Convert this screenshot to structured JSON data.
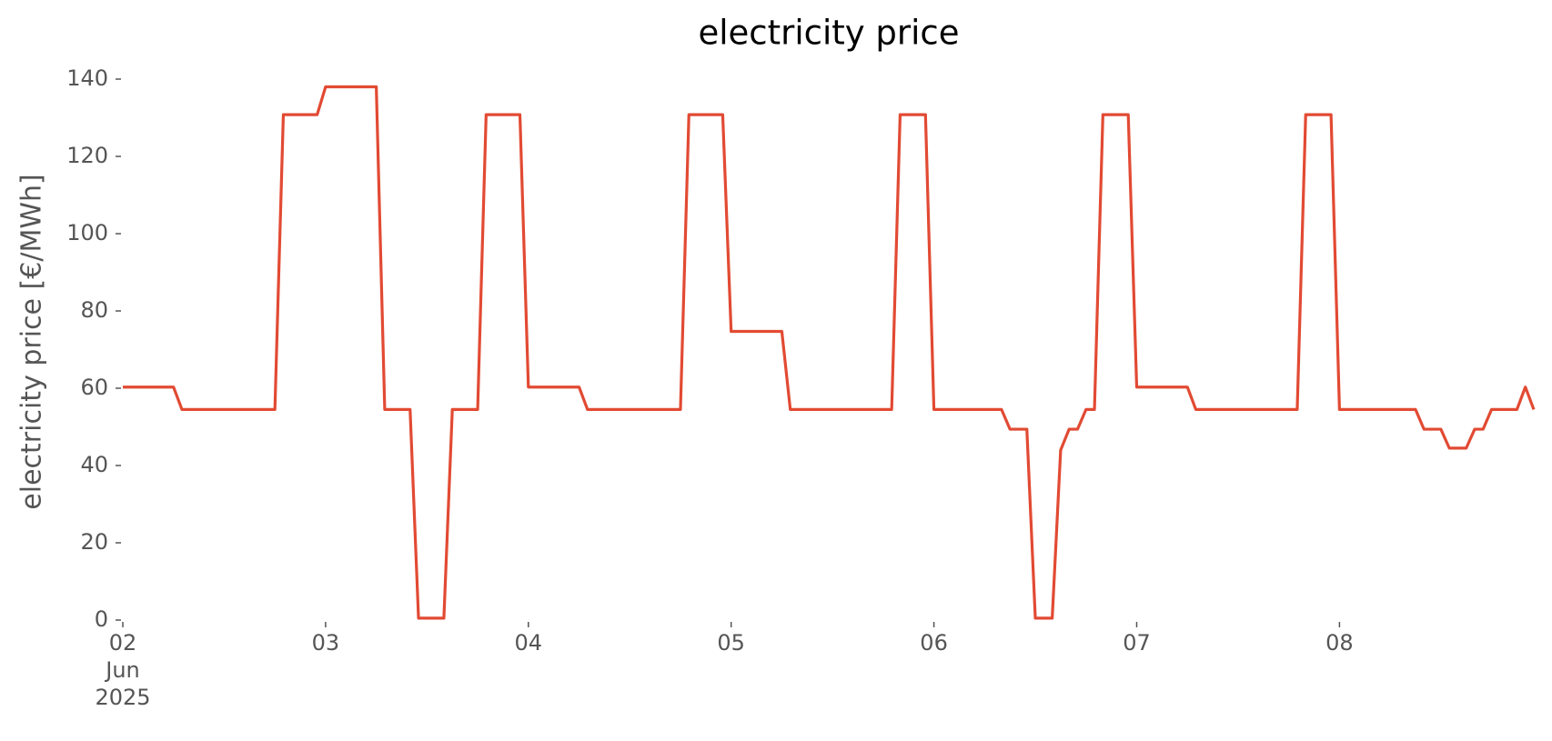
{
  "chart_data": {
    "type": "line",
    "title": "electricity price",
    "y_label": "electricity price [€/MWh]",
    "x": [
      "2025-06-02 00:00",
      "2025-06-02 01:00",
      "2025-06-02 02:00",
      "2025-06-02 03:00",
      "2025-06-02 04:00",
      "2025-06-02 05:00",
      "2025-06-02 06:00",
      "2025-06-02 07:00",
      "2025-06-02 08:00",
      "2025-06-02 09:00",
      "2025-06-02 10:00",
      "2025-06-02 11:00",
      "2025-06-02 12:00",
      "2025-06-02 13:00",
      "2025-06-02 14:00",
      "2025-06-02 15:00",
      "2025-06-02 16:00",
      "2025-06-02 17:00",
      "2025-06-02 18:00",
      "2025-06-02 19:00",
      "2025-06-02 20:00",
      "2025-06-02 21:00",
      "2025-06-02 22:00",
      "2025-06-02 23:00",
      "2025-06-03 00:00",
      "2025-06-03 01:00",
      "2025-06-03 02:00",
      "2025-06-03 03:00",
      "2025-06-03 04:00",
      "2025-06-03 05:00",
      "2025-06-03 06:00",
      "2025-06-03 07:00",
      "2025-06-03 08:00",
      "2025-06-03 09:00",
      "2025-06-03 10:00",
      "2025-06-03 11:00",
      "2025-06-03 12:00",
      "2025-06-03 13:00",
      "2025-06-03 14:00",
      "2025-06-03 15:00",
      "2025-06-03 16:00",
      "2025-06-03 17:00",
      "2025-06-03 18:00",
      "2025-06-03 19:00",
      "2025-06-03 20:00",
      "2025-06-03 21:00",
      "2025-06-03 22:00",
      "2025-06-03 23:00",
      "2025-06-04 00:00",
      "2025-06-04 01:00",
      "2025-06-04 02:00",
      "2025-06-04 03:00",
      "2025-06-04 04:00",
      "2025-06-04 05:00",
      "2025-06-04 06:00",
      "2025-06-04 07:00",
      "2025-06-04 08:00",
      "2025-06-04 09:00",
      "2025-06-04 10:00",
      "2025-06-04 11:00",
      "2025-06-04 12:00",
      "2025-06-04 13:00",
      "2025-06-04 14:00",
      "2025-06-04 15:00",
      "2025-06-04 16:00",
      "2025-06-04 17:00",
      "2025-06-04 18:00",
      "2025-06-04 19:00",
      "2025-06-04 20:00",
      "2025-06-04 21:00",
      "2025-06-04 22:00",
      "2025-06-04 23:00",
      "2025-06-05 00:00",
      "2025-06-05 01:00",
      "2025-06-05 02:00",
      "2025-06-05 03:00",
      "2025-06-05 04:00",
      "2025-06-05 05:00",
      "2025-06-05 06:00",
      "2025-06-05 07:00",
      "2025-06-05 08:00",
      "2025-06-05 09:00",
      "2025-06-05 10:00",
      "2025-06-05 11:00",
      "2025-06-05 12:00",
      "2025-06-05 13:00",
      "2025-06-05 14:00",
      "2025-06-05 15:00",
      "2025-06-05 16:00",
      "2025-06-05 17:00",
      "2025-06-05 18:00",
      "2025-06-05 19:00",
      "2025-06-05 20:00",
      "2025-06-05 21:00",
      "2025-06-05 22:00",
      "2025-06-05 23:00",
      "2025-06-06 00:00",
      "2025-06-06 01:00",
      "2025-06-06 02:00",
      "2025-06-06 03:00",
      "2025-06-06 04:00",
      "2025-06-06 05:00",
      "2025-06-06 06:00",
      "2025-06-06 07:00",
      "2025-06-06 08:00",
      "2025-06-06 09:00",
      "2025-06-06 10:00",
      "2025-06-06 11:00",
      "2025-06-06 12:00",
      "2025-06-06 13:00",
      "2025-06-06 14:00",
      "2025-06-06 15:00",
      "2025-06-06 16:00",
      "2025-06-06 17:00",
      "2025-06-06 18:00",
      "2025-06-06 19:00",
      "2025-06-06 20:00",
      "2025-06-06 21:00",
      "2025-06-06 22:00",
      "2025-06-06 23:00",
      "2025-06-07 00:00",
      "2025-06-07 01:00",
      "2025-06-07 02:00",
      "2025-06-07 03:00",
      "2025-06-07 04:00",
      "2025-06-07 05:00",
      "2025-06-07 06:00",
      "2025-06-07 07:00",
      "2025-06-07 08:00",
      "2025-06-07 09:00",
      "2025-06-07 10:00",
      "2025-06-07 11:00",
      "2025-06-07 12:00",
      "2025-06-07 13:00",
      "2025-06-07 14:00",
      "2025-06-07 15:00",
      "2025-06-07 16:00",
      "2025-06-07 17:00",
      "2025-06-07 18:00",
      "2025-06-07 19:00",
      "2025-06-07 20:00",
      "2025-06-07 21:00",
      "2025-06-07 22:00",
      "2025-06-07 23:00",
      "2025-06-08 00:00",
      "2025-06-08 01:00",
      "2025-06-08 02:00",
      "2025-06-08 03:00",
      "2025-06-08 04:00",
      "2025-06-08 05:00",
      "2025-06-08 06:00",
      "2025-06-08 07:00",
      "2025-06-08 08:00",
      "2025-06-08 09:00",
      "2025-06-08 10:00",
      "2025-06-08 11:00",
      "2025-06-08 12:00",
      "2025-06-08 13:00",
      "2025-06-08 14:00",
      "2025-06-08 15:00",
      "2025-06-08 16:00",
      "2025-06-08 17:00",
      "2025-06-08 18:00",
      "2025-06-08 19:00",
      "2025-06-08 20:00",
      "2025-06-08 21:00",
      "2025-06-08 22:00",
      "2025-06-08 23:00"
    ],
    "series": [
      {
        "name": "electricity price",
        "color": "#e24a33",
        "values": [
          60.3,
          60.3,
          60.3,
          60.3,
          60.3,
          60.3,
          60.3,
          54.5,
          54.5,
          54.5,
          54.5,
          54.5,
          54.5,
          54.5,
          54.5,
          54.5,
          54.5,
          54.5,
          54.5,
          130.8,
          130.8,
          130.8,
          130.8,
          130.8,
          138,
          138,
          138,
          138,
          138,
          138,
          138,
          54.5,
          54.5,
          54.5,
          54.5,
          0.5,
          0.5,
          0.5,
          0.5,
          54.5,
          54.5,
          54.5,
          54.5,
          130.8,
          130.8,
          130.8,
          130.8,
          130.8,
          60.3,
          60.3,
          60.3,
          60.3,
          60.3,
          60.3,
          60.3,
          54.5,
          54.5,
          54.5,
          54.5,
          54.5,
          54.5,
          54.5,
          54.5,
          54.5,
          54.5,
          54.5,
          54.5,
          130.8,
          130.8,
          130.8,
          130.8,
          130.8,
          74.7,
          74.7,
          74.7,
          74.7,
          74.7,
          74.7,
          74.7,
          54.5,
          54.5,
          54.5,
          54.5,
          54.5,
          54.5,
          54.5,
          54.5,
          54.5,
          54.5,
          54.5,
          54.5,
          54.5,
          130.8,
          130.8,
          130.8,
          130.8,
          54.5,
          54.5,
          54.5,
          54.5,
          54.5,
          54.5,
          54.5,
          54.5,
          54.5,
          49.4,
          49.4,
          49.4,
          0.5,
          0.5,
          0.5,
          44,
          49.4,
          49.4,
          54.5,
          54.5,
          130.8,
          130.8,
          130.8,
          130.8,
          60.3,
          60.3,
          60.3,
          60.3,
          60.3,
          60.3,
          60.3,
          54.5,
          54.5,
          54.5,
          54.5,
          54.5,
          54.5,
          54.5,
          54.5,
          54.5,
          54.5,
          54.5,
          54.5,
          54.5,
          130.8,
          130.8,
          130.8,
          130.8,
          54.5,
          54.5,
          54.5,
          54.5,
          54.5,
          54.5,
          54.5,
          54.5,
          54.5,
          54.5,
          49.4,
          49.4,
          49.4,
          44.5,
          44.5,
          44.5,
          49.4,
          49.4,
          54.5,
          54.5,
          54.5,
          54.5,
          60.3,
          54.5
        ]
      }
    ],
    "xlim": [
      "2025-06-02 00:00",
      "2025-06-08 23:00"
    ],
    "xticks": [
      {
        "value": "2025-06-02 00:00",
        "label": "02\nJun\n2025"
      },
      {
        "value": "2025-06-03 00:00",
        "label": "03"
      },
      {
        "value": "2025-06-04 00:00",
        "label": "04"
      },
      {
        "value": "2025-06-05 00:00",
        "label": "05"
      },
      {
        "value": "2025-06-06 00:00",
        "label": "06"
      },
      {
        "value": "2025-06-07 00:00",
        "label": "07"
      },
      {
        "value": "2025-06-08 00:00",
        "label": "08"
      }
    ],
    "ylim": [
      0,
      140
    ],
    "yticks": [
      0,
      20,
      40,
      60,
      80,
      100,
      120,
      140
    ],
    "grid": false
  }
}
